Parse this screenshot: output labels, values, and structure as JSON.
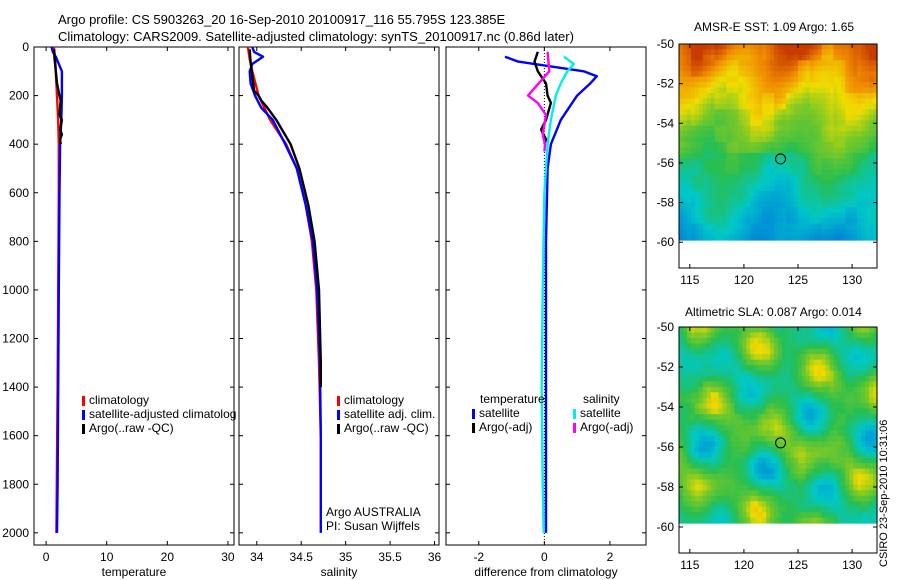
{
  "header": {
    "line1": "Argo profile: CS 5903263_20 16-Sep-2010 20100917_116 55.795S 123.385E",
    "line2": "Climatology: CARS2009. Satellite-adjusted climatology: synTS_20100917.nc (0.86d later)"
  },
  "map_titles": {
    "sst": "AMSR-E SST: 1.09 Argo: 1.65",
    "sla": "Altimetric SLA: 0.087 Argo: 0.014"
  },
  "side_label": "CSIRO 23-Sep-2010 10:31:06",
  "float_info": {
    "line1": "Argo AUSTRALIA",
    "line2": "PI: Susan Wijffels"
  },
  "legends": {
    "temperature": [
      {
        "label": "climatology",
        "color": "#ff0000"
      },
      {
        "label": "satellite-adjusted climatolog",
        "color": "#0000ff"
      },
      {
        "label": "Argo(..raw -QC)",
        "color": "#000000"
      }
    ],
    "salinity": [
      {
        "label": "climatology",
        "color": "#ff0000"
      },
      {
        "label": "satellite adj. clim.",
        "color": "#0000ff"
      },
      {
        "label": "Argo(..raw -QC)",
        "color": "#000000"
      }
    ],
    "difference": {
      "col1_header": "temperature",
      "col2_header": "salinity",
      "col1": [
        {
          "label": "satellite",
          "color": "#0000ff"
        },
        {
          "label": "Argo(-adj)",
          "color": "#000000"
        }
      ],
      "col2": [
        {
          "label": "satellite",
          "color": "#00eeee"
        },
        {
          "label": "Argo(-adj)",
          "color": "#ff00ff"
        }
      ]
    }
  },
  "chart_data": [
    {
      "type": "line",
      "xlabel": "temperature",
      "ylabel": "",
      "xlim": [
        -2,
        31
      ],
      "ylim": [
        2050,
        0
      ],
      "xticks": [
        0,
        10,
        20,
        30
      ],
      "yticks": [
        0,
        200,
        400,
        600,
        800,
        1000,
        1200,
        1400,
        1600,
        1800,
        2000
      ],
      "series": [
        {
          "name": "climatology",
          "color": "#ff0000",
          "x": [
            1.3,
            1.4,
            1.5,
            1.6,
            1.8,
            2.0,
            2.1,
            2.1,
            2.05,
            2.0,
            1.9,
            1.8,
            1.7
          ],
          "y": [
            0,
            30,
            50,
            100,
            200,
            300,
            400,
            600,
            800,
            1000,
            1400,
            1700,
            2000
          ]
        },
        {
          "name": "satellite-adjusted climatolog",
          "color": "#0000ff",
          "x": [
            0.9,
            1.1,
            1.6,
            2.6,
            2.6,
            2.5,
            2.3,
            2.2,
            2.1,
            2.0,
            1.9,
            1.8
          ],
          "y": [
            0,
            20,
            40,
            100,
            200,
            300,
            400,
            600,
            1000,
            1400,
            1800,
            2000
          ]
        },
        {
          "name": "Argo(..raw -QC)",
          "color": "#000000",
          "x": [
            1.3,
            1.4,
            1.6,
            1.8,
            2.2,
            2.4,
            2.2,
            2.6,
            2.3,
            2.6,
            2.3,
            2.4
          ],
          "y": [
            10,
            50,
            100,
            150,
            200,
            220,
            280,
            300,
            340,
            360,
            380,
            400
          ]
        }
      ]
    },
    {
      "type": "line",
      "xlabel": "salinity",
      "ylabel": "",
      "xlim": [
        33.8,
        36.05
      ],
      "ylim": [
        2050,
        0
      ],
      "xticks": [
        34,
        34.5,
        35,
        35.5,
        36
      ],
      "yticks": [
        0,
        200,
        400,
        600,
        800,
        1000,
        1200,
        1400,
        1600,
        1800,
        2000
      ],
      "series": [
        {
          "name": "climatology",
          "color": "#ff0000",
          "x": [
            33.9,
            33.92,
            33.95,
            34.02,
            34.15,
            34.33,
            34.45,
            34.55,
            34.62,
            34.67,
            34.7,
            34.72
          ],
          "y": [
            0,
            50,
            100,
            200,
            300,
            400,
            500,
            650,
            800,
            1000,
            1300,
            1600
          ]
        },
        {
          "name": "satellite adj. clim.",
          "color": "#0000ff",
          "x": [
            33.95,
            33.97,
            34.07,
            33.95,
            33.92,
            33.93,
            33.98,
            34.05,
            34.18,
            34.32,
            34.45,
            34.55,
            34.63,
            34.68,
            34.71,
            34.72,
            34.72
          ],
          "y": [
            0,
            20,
            40,
            70,
            100,
            150,
            200,
            250,
            300,
            400,
            500,
            650,
            800,
            1000,
            1300,
            1600,
            2000
          ]
        },
        {
          "name": "Argo(..raw -QC)",
          "color": "#000000",
          "x": [
            33.92,
            33.93,
            33.95,
            33.97,
            34.02,
            34.05,
            34.12,
            34.22,
            34.3,
            34.38,
            34.48,
            34.58,
            34.65,
            34.7,
            34.72,
            34.72
          ],
          "y": [
            10,
            60,
            120,
            180,
            200,
            220,
            250,
            300,
            350,
            400,
            500,
            650,
            800,
            1000,
            1300,
            1400
          ]
        }
      ]
    },
    {
      "type": "line",
      "xlabel": "difference from climatology",
      "ylabel": "",
      "xlim": [
        -3,
        3.1
      ],
      "ylim": [
        2050,
        0
      ],
      "xticks": [
        -2,
        0,
        2
      ],
      "yticks": [
        0,
        200,
        400,
        600,
        800,
        1000,
        1200,
        1400,
        1600,
        1800,
        2000
      ],
      "series": [
        {
          "name": "temperature satellite",
          "color": "#0000ff",
          "x": [
            -1.2,
            -0.8,
            0.2,
            1.2,
            1.6,
            1.4,
            1.0,
            0.5,
            0.2,
            0.1,
            0.05,
            0.05,
            0.05,
            0.05
          ],
          "y": [
            40,
            60,
            80,
            100,
            120,
            150,
            200,
            300,
            400,
            500,
            800,
            1200,
            1600,
            2000
          ]
        },
        {
          "name": "temperature Argo(-adj)",
          "color": "#000000",
          "x": [
            -0.2,
            -0.3,
            -0.2,
            0.05,
            0.1,
            0.2,
            0.05,
            -0.1,
            0.05,
            0.0
          ],
          "y": [
            20,
            60,
            100,
            150,
            200,
            230,
            300,
            340,
            380,
            400
          ]
        },
        {
          "name": "salinity satellite",
          "color": "#00eeee",
          "x": [
            0.6,
            0.9,
            0.7,
            0.5,
            0.35,
            0.2,
            0.1,
            0.0,
            -0.05,
            -0.08,
            -0.05,
            -0.02
          ],
          "y": [
            40,
            70,
            100,
            150,
            200,
            300,
            400,
            600,
            1000,
            1400,
            1800,
            2000
          ]
        },
        {
          "name": "salinity Argo(-adj)",
          "color": "#ff00ff",
          "x": [
            0.1,
            0.15,
            -0.5,
            -0.2,
            0.05,
            0.0,
            -0.05,
            0.02,
            0.0
          ],
          "y": [
            20,
            100,
            200,
            230,
            280,
            320,
            360,
            400,
            430
          ]
        }
      ]
    },
    {
      "type": "heatmap",
      "title": "AMSR-E SST: 1.09 Argo: 1.65",
      "xlim": [
        114,
        132.3
      ],
      "ylim": [
        -61.3,
        -50
      ],
      "xticks": [
        115,
        120,
        125,
        130
      ],
      "yticks": [
        -50,
        -52,
        -54,
        -56,
        -58,
        -60
      ],
      "data_extent": {
        "lon": [
          114,
          132.3
        ],
        "lat": [
          -60,
          -50
        ]
      },
      "marker": {
        "lon": 123.385,
        "lat": -55.795
      }
    },
    {
      "type": "heatmap",
      "title": "Altimetric SLA: 0.087 Argo: 0.014",
      "xlim": [
        114,
        132.3
      ],
      "ylim": [
        -61.3,
        -50
      ],
      "xticks": [
        115,
        120,
        125,
        130
      ],
      "yticks": [
        -50,
        -52,
        -54,
        -56,
        -58,
        -60
      ],
      "data_extent": {
        "lon": [
          114,
          132.3
        ],
        "lat": [
          -60,
          -50
        ]
      },
      "marker": {
        "lon": 123.385,
        "lat": -55.795
      }
    }
  ]
}
